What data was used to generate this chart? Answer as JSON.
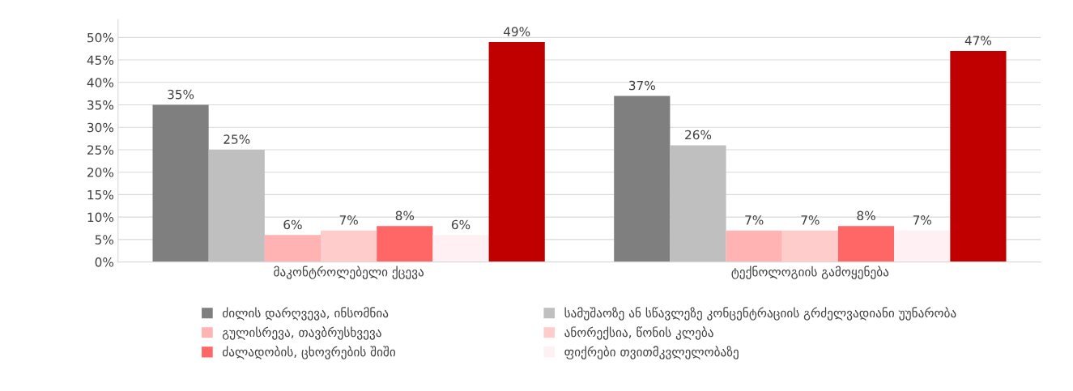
{
  "chart_data": {
    "type": "bar",
    "categories": [
      "მაკონტროლებელი ქცევა",
      "ტექნოლოგიის გამოყენება"
    ],
    "series": [
      {
        "name": "ძილის დარღვევა, ინსომნია",
        "color": "#7f7f7f",
        "values": [
          35,
          37
        ],
        "value_labels": [
          "35%",
          "37%"
        ]
      },
      {
        "name": "სამუშაოზე ან სწავლეზე კონცენტრაციის გრძელვადიანი უუნარობა",
        "color": "#bfbfbf",
        "values": [
          25,
          26
        ],
        "value_labels": [
          "25%",
          "26%"
        ]
      },
      {
        "name": "გულისრევა, თავბრუსხვევა",
        "color": "#ffb3b3",
        "values": [
          6,
          7
        ],
        "value_labels": [
          "6%",
          "7%"
        ]
      },
      {
        "name": "ანორექსია, წონის კლება",
        "color": "#ffcccc",
        "values": [
          7,
          7
        ],
        "value_labels": [
          "7%",
          "7%"
        ]
      },
      {
        "name": "ძალადობის, ცხოვრების შიში",
        "color": "#ff6666",
        "values": [
          8,
          8
        ],
        "value_labels": [
          "8%",
          "8%"
        ]
      },
      {
        "name": "ფიქრები თვითმკვლელობაზე",
        "color": "#fff0f3",
        "values": [
          6,
          7
        ],
        "value_labels": [
          "6%",
          "7%"
        ]
      },
      {
        "color": "#c00000",
        "values": [
          49,
          47
        ],
        "value_labels": [
          "49%",
          "47%"
        ]
      }
    ],
    "ylim": [
      0,
      54
    ],
    "yticks": [
      {
        "value": 0,
        "label": "0%"
      },
      {
        "value": 5,
        "label": "5%"
      },
      {
        "value": 10,
        "label": "10%"
      },
      {
        "value": 15,
        "label": "15%"
      },
      {
        "value": 20,
        "label": "20%"
      },
      {
        "value": 25,
        "label": "25%"
      },
      {
        "value": 30,
        "label": "30%"
      },
      {
        "value": 35,
        "label": "35%"
      },
      {
        "value": 40,
        "label": "40%"
      },
      {
        "value": 45,
        "label": "45%"
      },
      {
        "value": 50,
        "label": "50%"
      }
    ],
    "grid": "y",
    "legend": "bottom"
  }
}
